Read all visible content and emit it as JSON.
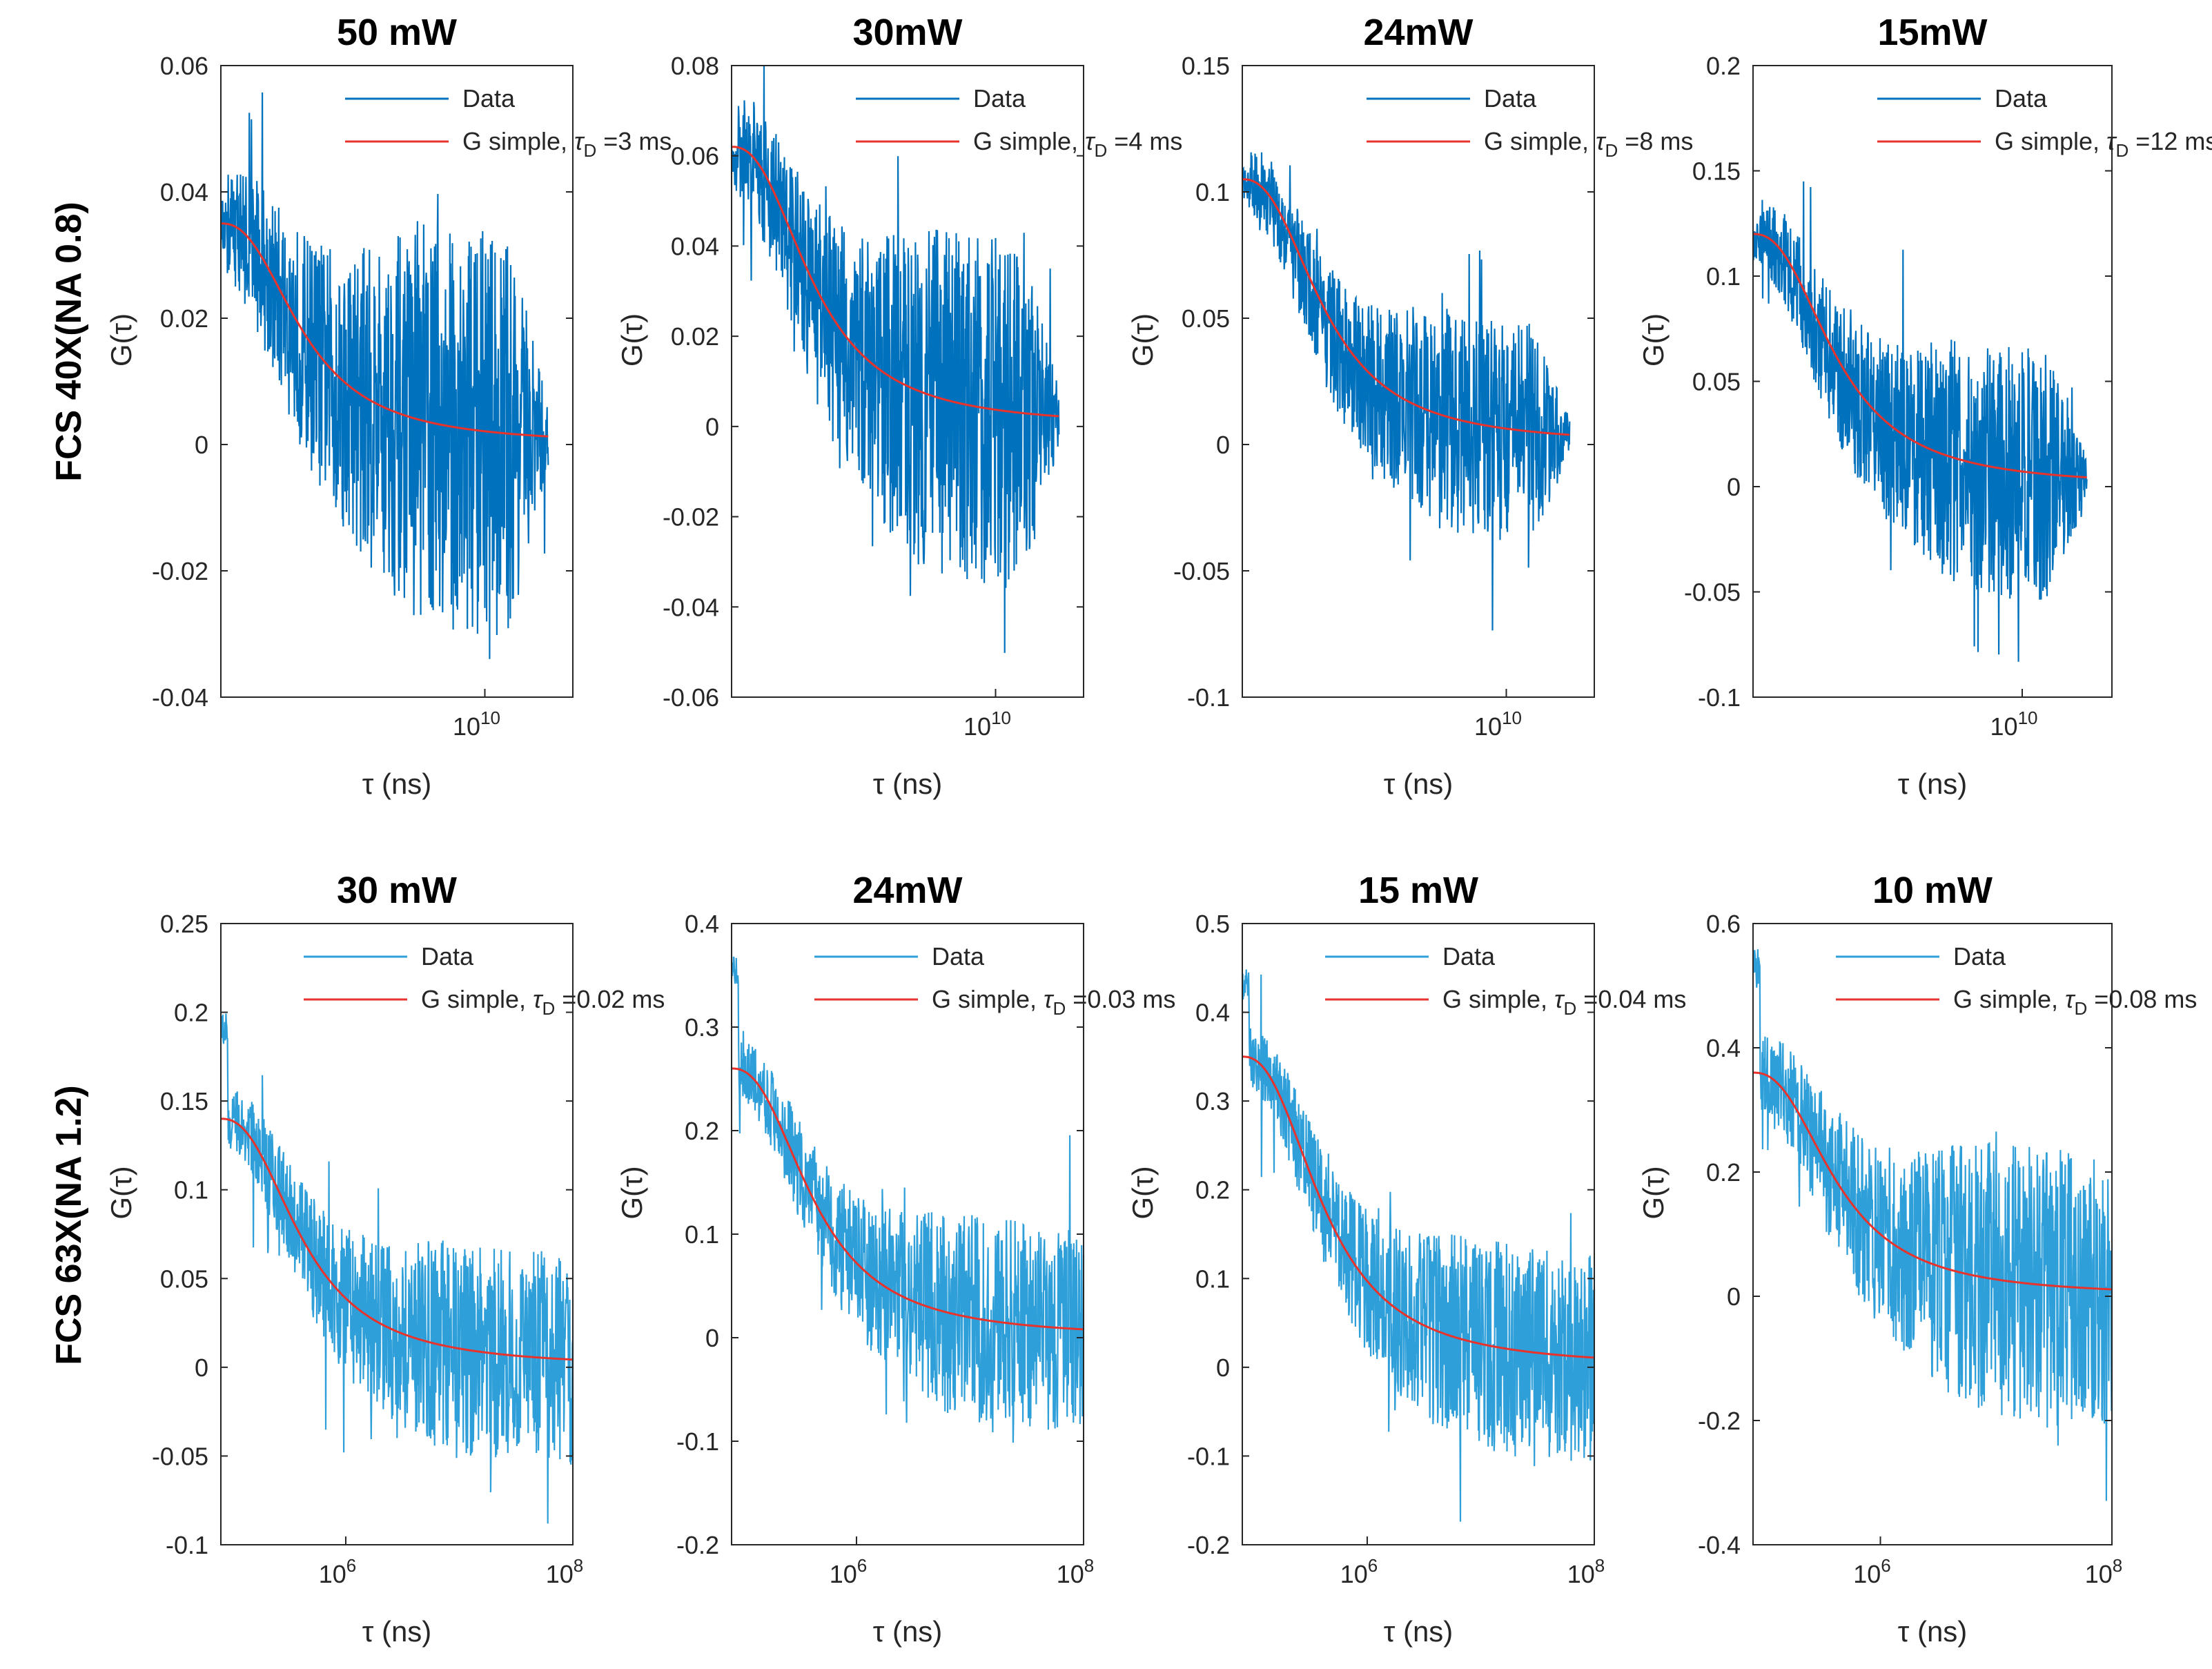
{
  "row_labels": [
    "FCS 40X(NA 0.8)",
    "FCS 63X(NA 1.2)"
  ],
  "legend": {
    "data": "Data",
    "fit_prefix": "G simple, ",
    "tau": "τ",
    "tau_sub": "D"
  },
  "colors": {
    "data": "#0072BD",
    "data_light": "#2E9FD8",
    "fit": "#E8322B",
    "axis": "#262626"
  },
  "chart_data": [
    {
      "type": "line",
      "row": 0,
      "col": 0,
      "title": "50 mW",
      "xscale": "log",
      "xlabel": "τ (ns)",
      "ylabel": "G(τ)",
      "ylim": [
        -0.04,
        0.06
      ],
      "yticks": [
        "0.06",
        "0.04",
        "0.02",
        "0",
        "-0.02",
        "-0.04"
      ],
      "ytick_values": [
        0.06,
        0.04,
        0.02,
        0,
        -0.02,
        -0.04
      ],
      "xticks": [
        {
          "base": "10",
          "exp": "10"
        }
      ],
      "xlim_log10": [
        7,
        11
      ],
      "series": [
        {
          "name": "Data",
          "start": 0.04,
          "band": 0.032,
          "spike": 0.01
        },
        {
          "name": "G simple",
          "tau_D": "3 ms",
          "legend_value": "=3 ms",
          "G0": 0.035,
          "end": 0.0
        }
      ],
      "legend_text": "=3 ms"
    },
    {
      "type": "line",
      "row": 0,
      "col": 1,
      "title": "30mW",
      "xscale": "log",
      "xlabel": "τ (ns)",
      "ylabel": "G(τ)",
      "ylim": [
        -0.06,
        0.08
      ],
      "yticks": [
        "0.08",
        "0.06",
        "0.04",
        "0.02",
        "0",
        "-0.02",
        "-0.04",
        "-0.06"
      ],
      "ytick_values": [
        0.08,
        0.06,
        0.04,
        0.02,
        0,
        -0.02,
        -0.04,
        -0.06
      ],
      "xticks": [
        {
          "base": "10",
          "exp": "10"
        }
      ],
      "xlim_log10": [
        7,
        11
      ],
      "series": [
        {
          "name": "Data",
          "start": 0.064,
          "band": 0.04,
          "spike": 0.012
        },
        {
          "name": "G simple",
          "tau_D": "4 ms",
          "G0": 0.062,
          "end": 0.0
        }
      ],
      "legend_text": "=4 ms"
    },
    {
      "type": "line",
      "row": 0,
      "col": 2,
      "title": "24mW",
      "xscale": "log",
      "xlabel": "τ (ns)",
      "ylabel": "G(τ)",
      "ylim": [
        -0.1,
        0.15
      ],
      "yticks": [
        "0.15",
        "0.1",
        "0.05",
        "0",
        "-0.05",
        "-0.1"
      ],
      "ytick_values": [
        0.15,
        0.1,
        0.05,
        0,
        -0.05,
        -0.1
      ],
      "xticks": [
        {
          "base": "10",
          "exp": "10"
        }
      ],
      "xlim_log10": [
        7,
        11
      ],
      "series": [
        {
          "name": "Data",
          "start": 0.11,
          "band": 0.045,
          "spike": 0.02
        },
        {
          "name": "G simple",
          "tau_D": "8 ms",
          "G0": 0.105,
          "end": 0.0
        }
      ],
      "legend_text": "=8 ms"
    },
    {
      "type": "line",
      "row": 0,
      "col": 3,
      "title": "15mW",
      "xscale": "log",
      "xlabel": "τ (ns)",
      "ylabel": "G(τ)",
      "ylim": [
        -0.1,
        0.2
      ],
      "yticks": [
        "0.2",
        "0.15",
        "0.1",
        "0.05",
        "0",
        "-0.05",
        "-0.1"
      ],
      "ytick_values": [
        0.2,
        0.15,
        0.1,
        0.05,
        0,
        -0.05,
        -0.1
      ],
      "xticks": [
        {
          "base": "10",
          "exp": "10"
        }
      ],
      "xlim_log10": [
        7,
        11
      ],
      "series": [
        {
          "name": "Data",
          "start": 0.125,
          "band": 0.06,
          "spike": 0.025
        },
        {
          "name": "G simple",
          "tau_D": "12 ms",
          "G0": 0.12,
          "end": 0.0
        }
      ],
      "legend_text": "=12 ms"
    },
    {
      "type": "line",
      "row": 1,
      "col": 0,
      "title": "30 mW",
      "xscale": "log",
      "xlabel": "τ (ns)",
      "ylabel": "G(τ)",
      "ylim": [
        -0.1,
        0.25
      ],
      "yticks": [
        "0.25",
        "0.2",
        "0.15",
        "0.1",
        "0.05",
        "0",
        "-0.05",
        "-0.1"
      ],
      "ytick_values": [
        0.25,
        0.2,
        0.15,
        0.1,
        0.05,
        0,
        -0.05,
        -0.1
      ],
      "xticks": [
        {
          "base": "10",
          "exp": "6"
        },
        {
          "base": "10",
          "exp": "8"
        }
      ],
      "xlim_log10": [
        4.9,
        8
      ],
      "series": [
        {
          "name": "Data",
          "start": 0.2,
          "band": 0.06,
          "spike": 0.03
        },
        {
          "name": "G simple",
          "tau_D": "0.02 ms",
          "G0": 0.14,
          "end": 0.0
        }
      ],
      "legend_text": "=0.02 ms"
    },
    {
      "type": "line",
      "row": 1,
      "col": 1,
      "title": "24mW",
      "xscale": "log",
      "xlabel": "τ (ns)",
      "ylabel": "G(τ)",
      "ylim": [
        -0.2,
        0.4
      ],
      "yticks": [
        "0.4",
        "0.3",
        "0.2",
        "0.1",
        "0",
        "-0.1",
        "-0.2"
      ],
      "ytick_values": [
        0.4,
        0.3,
        0.2,
        0.1,
        0,
        -0.1,
        -0.2
      ],
      "xticks": [
        {
          "base": "10",
          "exp": "6"
        },
        {
          "base": "10",
          "exp": "8"
        }
      ],
      "xlim_log10": [
        4.9,
        8
      ],
      "series": [
        {
          "name": "Data",
          "start": 0.37,
          "band": 0.1,
          "spike": 0.05
        },
        {
          "name": "G simple",
          "tau_D": "0.03 ms",
          "G0": 0.26,
          "end": 0.0
        }
      ],
      "legend_text": "=0.03 ms"
    },
    {
      "type": "line",
      "row": 1,
      "col": 2,
      "title": "15 mW",
      "xscale": "log",
      "xlabel": "τ (ns)",
      "ylabel": "G(τ)",
      "ylim": [
        -0.2,
        0.5
      ],
      "yticks": [
        "0.5",
        "0.4",
        "0.3",
        "0.2",
        "0.1",
        "0",
        "-0.1",
        "-0.2"
      ],
      "ytick_values": [
        0.5,
        0.4,
        0.3,
        0.2,
        0.1,
        0,
        -0.1,
        -0.2
      ],
      "xticks": [
        {
          "base": "10",
          "exp": "6"
        },
        {
          "base": "10",
          "exp": "8"
        }
      ],
      "xlim_log10": [
        4.9,
        8
      ],
      "series": [
        {
          "name": "Data",
          "start": 0.45,
          "band": 0.12,
          "spike": 0.06
        },
        {
          "name": "G simple",
          "tau_D": "0.04 ms",
          "G0": 0.35,
          "end": 0.0
        }
      ],
      "legend_text": "=0.04 ms"
    },
    {
      "type": "line",
      "row": 1,
      "col": 3,
      "title": "10 mW",
      "xscale": "log",
      "xlabel": "τ (ns)",
      "ylabel": "G(τ)",
      "ylim": [
        -0.4,
        0.6
      ],
      "yticks": [
        "0.6",
        "0.4",
        "0.2",
        "0",
        "-0.2",
        "-0.4"
      ],
      "ytick_values": [
        0.6,
        0.4,
        0.2,
        0,
        -0.2,
        -0.4
      ],
      "xticks": [
        {
          "base": "10",
          "exp": "6"
        },
        {
          "base": "10",
          "exp": "8"
        }
      ],
      "xlim_log10": [
        4.9,
        8
      ],
      "series": [
        {
          "name": "Data",
          "start": 0.56,
          "band": 0.22,
          "spike": 0.08
        },
        {
          "name": "G simple",
          "tau_D": "0.08 ms",
          "G0": 0.36,
          "end": 0.0
        }
      ],
      "legend_text": "=0.08 ms"
    }
  ]
}
